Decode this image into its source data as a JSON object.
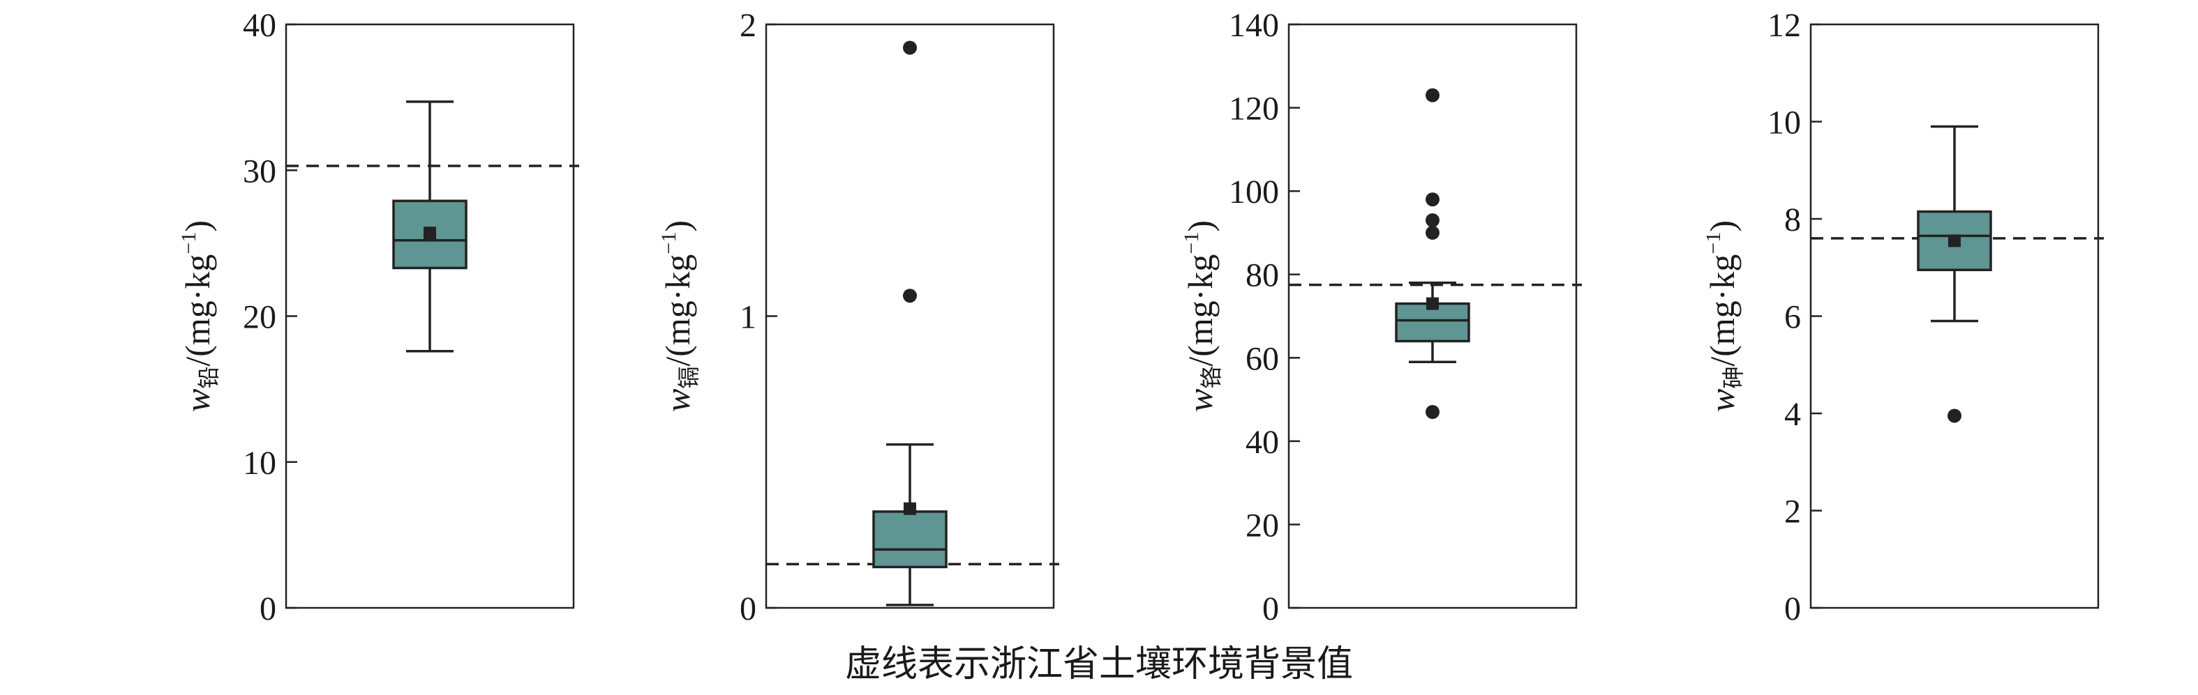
{
  "caption": "虚线表示浙江省土壤环境背景值",
  "colors": {
    "box_fill": "#5f9593",
    "stroke": "#222222",
    "background": "#ffffff"
  },
  "chart_data": [
    {
      "type": "box",
      "ylabel": {
        "symbol": "w",
        "subscript": "铅",
        "unit": "/(mg·kg",
        "unit_sup": "−1",
        "unit_close": ")"
      },
      "ylim": [
        0,
        40
      ],
      "yticks": [
        0,
        10,
        20,
        30,
        40
      ],
      "box": {
        "whisker_low": 17.6,
        "q1": 23.3,
        "median": 25.2,
        "q3": 27.9,
        "whisker_high": 34.7,
        "mean": 25.7
      },
      "outliers": [],
      "background_value": 30.3
    },
    {
      "type": "box",
      "ylabel": {
        "symbol": "w",
        "subscript": "镉",
        "unit": "/(mg·kg",
        "unit_sup": "−1",
        "unit_close": ")"
      },
      "ylim": [
        0,
        2
      ],
      "yticks": [
        0,
        1,
        2
      ],
      "box": {
        "whisker_low": 0.01,
        "q1": 0.14,
        "median": 0.2,
        "q3": 0.33,
        "whisker_high": 0.56,
        "mean": 0.34
      },
      "outliers": [
        1.07,
        1.92
      ],
      "background_value": 0.15
    },
    {
      "type": "box",
      "ylabel": {
        "symbol": "w",
        "subscript": "铬",
        "unit": "/(mg·kg",
        "unit_sup": "−1",
        "unit_close": ")"
      },
      "ylim": [
        0,
        140
      ],
      "yticks": [
        0,
        20,
        40,
        60,
        80,
        100,
        120,
        140
      ],
      "box": {
        "whisker_low": 59,
        "q1": 64,
        "median": 69,
        "q3": 73,
        "whisker_high": 78,
        "mean": 73
      },
      "outliers": [
        47,
        90,
        93,
        98,
        123
      ],
      "background_value": 77.5
    },
    {
      "type": "box",
      "ylabel": {
        "symbol": "w",
        "subscript": "砷",
        "unit": "/(mg·kg",
        "unit_sup": "−1",
        "unit_close": ")"
      },
      "ylim": [
        0,
        12
      ],
      "yticks": [
        0,
        2,
        4,
        6,
        8,
        10,
        12
      ],
      "box": {
        "whisker_low": 5.9,
        "q1": 6.95,
        "median": 7.65,
        "q3": 8.15,
        "whisker_high": 9.9,
        "mean": 7.55
      },
      "outliers": [
        3.95
      ],
      "background_value": 7.6
    }
  ]
}
